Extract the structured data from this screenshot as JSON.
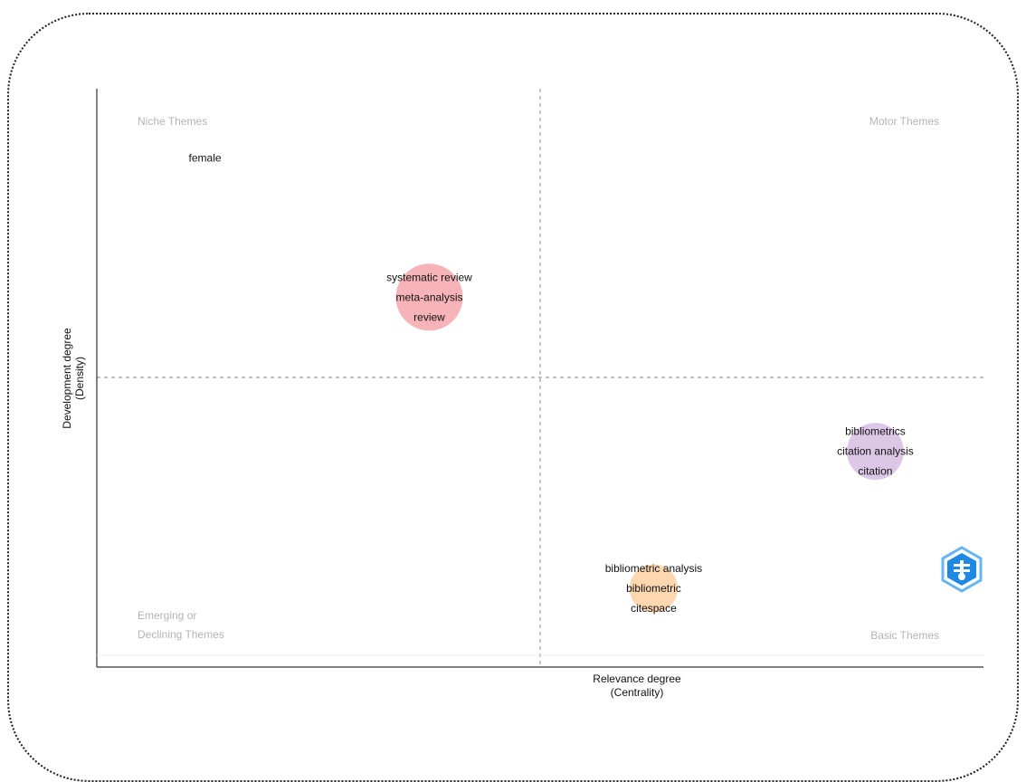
{
  "chart_data": {
    "type": "scatter",
    "title": "",
    "xlabel": [
      "Relevance degree",
      "(Centrality)"
    ],
    "ylabel": [
      "Development degree",
      "(Density)"
    ],
    "xlim": [
      0,
      1
    ],
    "ylim": [
      0,
      1
    ],
    "x_divider": 0.5,
    "y_divider": 0.5,
    "grid": false,
    "quadrant_labels": {
      "top_left": [
        "Niche Themes"
      ],
      "top_right": [
        "Motor Themes"
      ],
      "bottom_left": [
        "Emerging or",
        "Declining Themes"
      ],
      "bottom_right": [
        "Basic Themes"
      ]
    },
    "clusters": [
      {
        "labels": [
          "female"
        ],
        "x": 0.122,
        "y": 0.878,
        "size": 0,
        "color": "#9ecae1"
      },
      {
        "labels": [
          "systematic review",
          "meta-analysis",
          "review"
        ],
        "x": 0.375,
        "y": 0.632,
        "size": 1.0,
        "color": "#f4a6ac"
      },
      {
        "labels": [
          "bibliometrics",
          "citation analysis",
          "citation"
        ],
        "x": 0.878,
        "y": 0.36,
        "size": 0.85,
        "color": "#d7bde2"
      },
      {
        "labels": [
          "bibliometric analysis",
          "bibliometric",
          "citespace"
        ],
        "x": 0.628,
        "y": 0.118,
        "size": 0.72,
        "color": "#fdd0a2"
      }
    ]
  },
  "colors": {
    "axis": "#333333",
    "divider": "#999999",
    "quadrant_text": "#b4b4b4",
    "logo_primary": "#1e88e5",
    "logo_light": "#64b5f6"
  },
  "logo_icon": "bibliometrix-hexagon-icon"
}
